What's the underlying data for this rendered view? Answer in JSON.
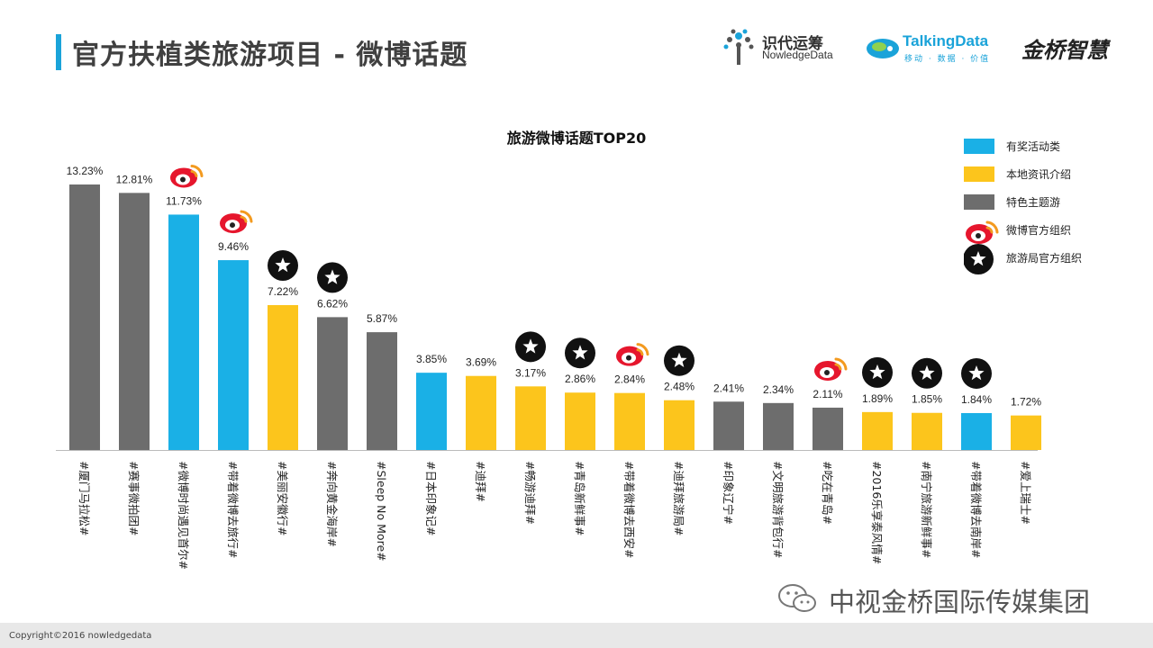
{
  "header": {
    "title": "官方扶植类旅游项目 - 微博话题",
    "logos": [
      {
        "name": "识代运筹",
        "sub": "NowledgeData"
      },
      {
        "name": "TalkingData",
        "sub": "移动 · 数据 · 价值"
      },
      {
        "name": "金桥智慧"
      }
    ]
  },
  "colors": {
    "blue": "#1ab0e6",
    "yellow": "#fcc51c",
    "gray": "#6d6d6d",
    "accent": "#1aa3d9"
  },
  "chart_data": {
    "type": "bar",
    "title": "旅游微博话题TOP20",
    "categories": [
      "#厦门马拉松#",
      "#赛事微拍团#",
      "#微博时尚遇见首尔#",
      "#带着微博去旅行#",
      "#美丽安徽行#",
      "#奔向黄金海岸#",
      "#Sleep No More#",
      "#日本印象记#",
      "#迪拜#",
      "#畅游迪拜#",
      "#青岛新鲜事#",
      "#带着微博去西安#",
      "#迪拜旅游局#",
      "#印象辽宁#",
      "#文明旅游背包行#",
      "#吃在青岛#",
      "#2016乐享泰风情#",
      "#南宁旅游新鲜事#",
      "#带着微博去南岸#",
      "#爱上瑞士#"
    ],
    "values": [
      13.23,
      12.81,
      11.73,
      9.46,
      7.22,
      6.62,
      5.87,
      3.85,
      3.69,
      3.17,
      2.86,
      2.84,
      2.48,
      2.41,
      2.34,
      2.11,
      1.89,
      1.85,
      1.84,
      1.72
    ],
    "labels": [
      "13.23%",
      "12.81%",
      "11.73%",
      "9.46%",
      "7.22%",
      "6.62%",
      "5.87%",
      "3.85%",
      "3.69%",
      "3.17%",
      "2.86%",
      "2.84%",
      "2.48%",
      "2.41%",
      "2.34%",
      "2.11%",
      "1.89%",
      "1.85%",
      "1.84%",
      "1.72%"
    ],
    "types": [
      "gray",
      "gray",
      "blue",
      "blue",
      "yellow",
      "gray",
      "gray",
      "blue",
      "yellow",
      "yellow",
      "yellow",
      "yellow",
      "yellow",
      "gray",
      "gray",
      "gray",
      "yellow",
      "yellow",
      "blue",
      "yellow"
    ],
    "markers": [
      "",
      "",
      "weibo",
      "weibo",
      "star",
      "star",
      "",
      "",
      "",
      "star",
      "star",
      "weibo",
      "star",
      "",
      "",
      "weibo",
      "star",
      "star",
      "star",
      ""
    ],
    "ylim": [
      0,
      13.23
    ],
    "legend": [
      {
        "label": "有奖活动类",
        "kind": "swatch",
        "color": "blue"
      },
      {
        "label": "本地资讯介绍",
        "kind": "swatch",
        "color": "yellow"
      },
      {
        "label": "特色主题游",
        "kind": "swatch",
        "color": "gray"
      },
      {
        "label": "微博官方组织",
        "kind": "weibo"
      },
      {
        "label": "旅游局官方组织",
        "kind": "star"
      }
    ]
  },
  "watermark": "中视金桥国际传媒集团",
  "footer": "Copyright©2016 nowledgedata"
}
